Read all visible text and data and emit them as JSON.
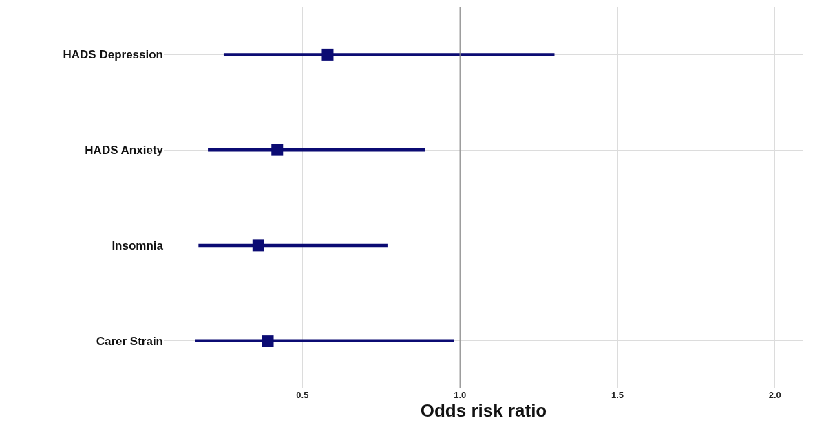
{
  "chart_data": {
    "type": "scatter",
    "orientation": "horizontal",
    "xlabel": "Odds risk ratio",
    "categories": [
      "HADS Depression",
      "HADS Anxiety",
      "Insomnia",
      "Carer Strain"
    ],
    "values": [
      0.58,
      0.42,
      0.36,
      0.39
    ],
    "errors": [
      [
        0.25,
        1.3
      ],
      [
        0.2,
        0.89
      ],
      [
        0.17,
        0.77
      ],
      [
        0.16,
        0.98
      ]
    ],
    "color": "#0b0b73",
    "marker": "square",
    "xlim": [
      0.06,
      2.09
    ],
    "xticks": [
      {
        "value": 0.5,
        "label": "0.5"
      },
      {
        "value": 1.0,
        "label": "1.0"
      },
      {
        "value": 1.5,
        "label": "1.5"
      },
      {
        "value": 2.0,
        "label": "2.0"
      }
    ],
    "ref_lines": [
      {
        "axis": "x",
        "value": 1.0,
        "color": "#8c8c8c"
      }
    ],
    "grid": true
  }
}
